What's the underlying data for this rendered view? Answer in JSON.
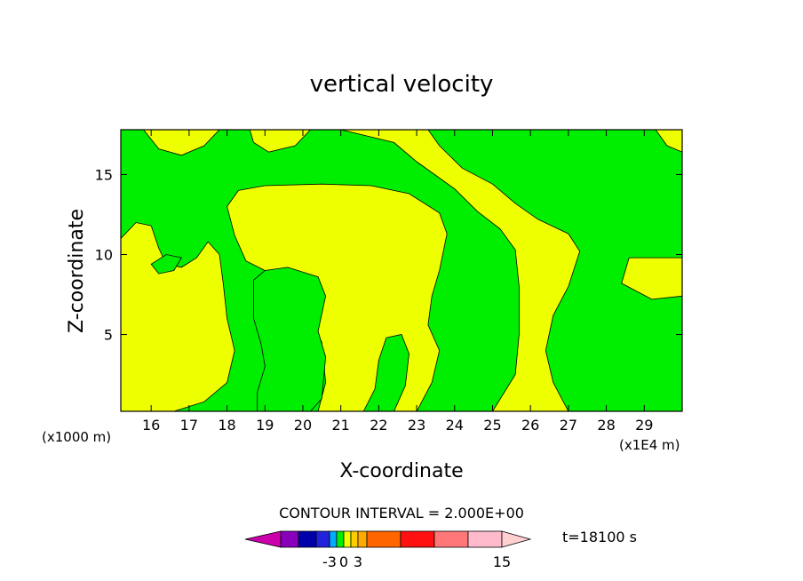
{
  "chart_data": {
    "type": "heatmap",
    "title": "vertical velocity",
    "xlabel": "X-coordinate",
    "ylabel": "Z-coordinate",
    "x_unit_left": "(x1000 m)",
    "x_unit_right": "(x1E4 m)",
    "xlim": [
      15.2,
      30.0
    ],
    "ylim": [
      0.2,
      17.8
    ],
    "xticks": [
      16,
      17,
      18,
      19,
      20,
      21,
      22,
      23,
      24,
      25,
      26,
      27,
      28,
      29
    ],
    "yticks": [
      5,
      10,
      15
    ],
    "contour_interval_label": "CONTOUR INTERVAL = 2.000E+00",
    "time_label": "t=18100 s",
    "colorbar": {
      "tick_labels": [
        "-3",
        "0",
        "3",
        "15"
      ],
      "colors": [
        "#cc00aa",
        "#8800bb",
        "#0000aa",
        "#2222dd",
        "#00aaff",
        "#00ee00",
        "#eeff00",
        "#ffcc00",
        "#ffaa00",
        "#ff6600",
        "#ff1111",
        "#ff7777",
        "#ffbbcc",
        "#ffd0d0"
      ]
    },
    "field_colors": {
      "positive_small": "#eeff00",
      "negative_small": "#00ee00",
      "contour": "#000000"
    },
    "regions": [
      {
        "level": "positive",
        "points": [
          [
            18.3,
            14.0
          ],
          [
            19.0,
            14.3
          ],
          [
            20.5,
            14.4
          ],
          [
            21.8,
            14.3
          ],
          [
            22.8,
            13.8
          ],
          [
            23.6,
            12.6
          ],
          [
            23.8,
            11.3
          ],
          [
            23.6,
            9.0
          ],
          [
            23.4,
            7.4
          ],
          [
            23.3,
            5.6
          ],
          [
            23.6,
            4.0
          ],
          [
            23.4,
            2.0
          ],
          [
            23.0,
            0.2
          ],
          [
            20.4,
            0.2
          ],
          [
            20.6,
            2.0
          ],
          [
            20.5,
            4.5
          ],
          [
            20.3,
            5.6
          ],
          [
            20.0,
            7.0
          ],
          [
            19.5,
            8.4
          ],
          [
            19.0,
            9.0
          ],
          [
            18.5,
            9.6
          ],
          [
            18.2,
            11.2
          ],
          [
            18.0,
            13.0
          ]
        ]
      },
      {
        "level": "positive",
        "points": [
          [
            21.0,
            17.8
          ],
          [
            23.3,
            17.8
          ],
          [
            23.6,
            16.8
          ],
          [
            24.2,
            15.4
          ],
          [
            25.0,
            14.4
          ],
          [
            25.6,
            13.2
          ],
          [
            26.2,
            12.2
          ],
          [
            27.0,
            11.3
          ],
          [
            27.3,
            10.2
          ],
          [
            27.0,
            8.0
          ],
          [
            26.6,
            6.2
          ],
          [
            26.4,
            4.0
          ],
          [
            26.6,
            2.0
          ],
          [
            27.0,
            0.2
          ],
          [
            25.0,
            0.2
          ],
          [
            25.6,
            2.5
          ],
          [
            25.7,
            5.0
          ],
          [
            25.7,
            8.0
          ],
          [
            25.6,
            10.3
          ],
          [
            25.2,
            11.6
          ],
          [
            24.6,
            12.7
          ],
          [
            24.0,
            14.1
          ],
          [
            23.0,
            15.8
          ],
          [
            22.4,
            17.0
          ]
        ]
      },
      {
        "level": "positive",
        "points": [
          [
            15.2,
            11.0
          ],
          [
            15.6,
            12.0
          ],
          [
            16.0,
            11.8
          ],
          [
            16.2,
            10.4
          ],
          [
            16.4,
            9.4
          ],
          [
            16.8,
            9.2
          ],
          [
            17.2,
            9.8
          ],
          [
            17.5,
            10.8
          ],
          [
            17.8,
            10.0
          ],
          [
            17.9,
            8.2
          ],
          [
            18.0,
            6.0
          ],
          [
            18.2,
            4.0
          ],
          [
            18.0,
            2.0
          ],
          [
            17.4,
            0.8
          ],
          [
            16.6,
            0.2
          ],
          [
            15.2,
            0.2
          ]
        ]
      },
      {
        "level": "positive",
        "points": [
          [
            18.6,
            17.8
          ],
          [
            20.2,
            17.8
          ],
          [
            19.8,
            16.8
          ],
          [
            19.1,
            16.4
          ],
          [
            18.7,
            17.0
          ]
        ]
      },
      {
        "level": "positive",
        "points": [
          [
            15.8,
            17.8
          ],
          [
            17.8,
            17.8
          ],
          [
            17.4,
            16.8
          ],
          [
            16.8,
            16.2
          ],
          [
            16.2,
            16.6
          ]
        ]
      },
      {
        "level": "positive",
        "points": [
          [
            28.6,
            9.8
          ],
          [
            30.0,
            9.8
          ],
          [
            30.0,
            7.4
          ],
          [
            29.2,
            7.2
          ],
          [
            28.4,
            8.2
          ]
        ]
      },
      {
        "level": "positive",
        "points": [
          [
            29.3,
            17.8
          ],
          [
            30.0,
            17.8
          ],
          [
            30.0,
            16.4
          ],
          [
            29.6,
            16.8
          ]
        ]
      },
      {
        "level": "negative",
        "points": [
          [
            18.7,
            8.4
          ],
          [
            19.0,
            9.0
          ],
          [
            19.6,
            9.2
          ],
          [
            20.4,
            8.6
          ],
          [
            20.6,
            7.4
          ],
          [
            20.4,
            5.2
          ],
          [
            20.6,
            3.6
          ],
          [
            20.5,
            1.0
          ],
          [
            20.2,
            0.2
          ],
          [
            18.8,
            0.2
          ],
          [
            18.8,
            1.4
          ],
          [
            19.0,
            3.0
          ],
          [
            18.9,
            4.4
          ],
          [
            18.7,
            6.0
          ]
        ]
      },
      {
        "level": "negative",
        "points": [
          [
            22.2,
            4.8
          ],
          [
            22.6,
            5.0
          ],
          [
            22.8,
            3.8
          ],
          [
            22.7,
            1.8
          ],
          [
            22.4,
            0.2
          ],
          [
            21.6,
            0.2
          ],
          [
            21.9,
            1.6
          ],
          [
            22.0,
            3.4
          ]
        ]
      },
      {
        "level": "negative",
        "points": [
          [
            16.0,
            9.4
          ],
          [
            16.4,
            10.0
          ],
          [
            16.8,
            9.8
          ],
          [
            16.6,
            9.0
          ],
          [
            16.2,
            8.8
          ]
        ]
      }
    ]
  }
}
